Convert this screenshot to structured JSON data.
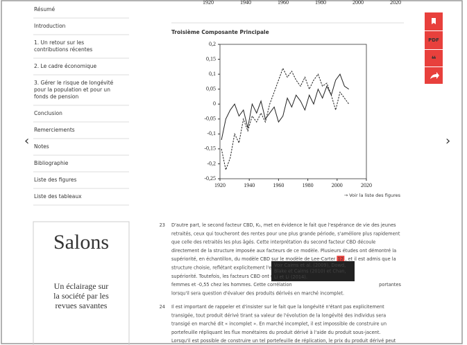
{
  "previous_figure": {
    "xticks": [
      1920,
      1940,
      1960,
      1980,
      2000,
      2020
    ]
  },
  "sidebar": {
    "items": [
      "Résumé",
      "Introduction",
      "1. Un retour sur les contributions récentes",
      "2. Le cadre économique",
      "3. Gérer le risque de longévité pour la population et pour un fonds de pension",
      "Conclusion",
      "Remerciements",
      "Notes",
      "Bibliographie",
      "Liste des figures",
      "Liste des tableaux"
    ]
  },
  "chart_data": {
    "type": "line",
    "title": "Troisième Composante Principale",
    "x": [
      1921,
      1924,
      1927,
      1930,
      1933,
      1936,
      1939,
      1942,
      1945,
      1948,
      1951,
      1954,
      1957,
      1960,
      1963,
      1966,
      1969,
      1972,
      1975,
      1978,
      1981,
      1984,
      1987,
      1990,
      1993,
      1996,
      1999,
      2002,
      2005,
      2008
    ],
    "series": [
      {
        "color": "#222222",
        "dash": false,
        "values": [
          -0.12,
          -0.05,
          -0.02,
          0.0,
          -0.04,
          -0.02,
          -0.08,
          0.0,
          -0.03,
          0.01,
          -0.05,
          -0.03,
          -0.01,
          -0.06,
          -0.04,
          0.02,
          -0.01,
          0.03,
          0.01,
          -0.02,
          0.03,
          0.0,
          0.05,
          0.02,
          0.06,
          0.03,
          0.08,
          0.1,
          0.06,
          0.05
        ]
      },
      {
        "color": "#222222",
        "dash": true,
        "values": [
          -0.15,
          -0.22,
          -0.18,
          -0.1,
          -0.13,
          -0.05,
          -0.09,
          -0.04,
          -0.06,
          -0.03,
          -0.06,
          0.0,
          0.04,
          0.08,
          0.12,
          0.09,
          0.11,
          0.08,
          0.06,
          0.09,
          0.05,
          0.08,
          0.1,
          0.06,
          0.07,
          0.03,
          -0.02,
          0.04,
          0.02,
          0.0
        ]
      }
    ],
    "xlim": [
      1920,
      2020
    ],
    "xticks": [
      1920,
      1940,
      1960,
      1980,
      2000,
      2020
    ],
    "ylim": [
      -0.25,
      0.2
    ],
    "yticks": [
      {
        "value": 0.2,
        "label": "0,2"
      },
      {
        "value": 0.15,
        "label": "0,15"
      },
      {
        "value": 0.1,
        "label": "0,1"
      },
      {
        "value": 0.05,
        "label": "0,05"
      },
      0,
      {
        "value": -0.05,
        "label": "-0,05"
      },
      {
        "value": -0.1,
        "label": "-0,1"
      },
      {
        "value": -0.15,
        "label": "-0,15"
      },
      {
        "value": -0.2,
        "label": "-0,2"
      },
      {
        "value": -0.25,
        "label": "-0,25"
      }
    ]
  },
  "figure_link": "→ Voir la liste des figures",
  "toolbar": {
    "pdf": "PDF"
  },
  "paragraphs": [
    {
      "number": "23",
      "lines": [
        "D'autre part, le second facteur CBD, K₂, met en évidence le fait que l'espérance de vie des jeunes",
        "retraités, ceux qui toucheront des rentes pour une plus grande période, s'améliore plus rapidement",
        "que celle des retraités les plus âgés. Cette interprétation du second facteur CBD découle",
        "directement de la structure imposée aux facteurs de ce modèle. Plusieurs études ont démontré la",
        "supériorité, en échantillon, du modèle CBD sur le modèle de Lee-Carter",
        "structure choisie, reflétant explicitement l'effet de l'âge sur",
        "supériorité. Toutefois, les facteurs CBD ont une forte corré",
        "femmes et -0,55 chez les hommes. Cette corrélation",
        "lorsqu'il sera question d'évaluer des produits dérivés en marché incomplet."
      ],
      "note": "12",
      "after_note": ", et il est admis que la",
      "line8_end": "portantes"
    },
    {
      "number": "24",
      "lines": [
        "Il est important de rappeler et d'insister sur le fait que la longévité n'étant pas explicitement",
        "transigée, tout produit dérivé tirant sa valeur de l'évolution de la longévité des individus sera",
        "transigé en marché dit « incomplet ». En marché incomplet, il est impossible de construire un",
        "portefeuille répliquant les flux monétaires du produit dérivé à l'aide du produit sous-jacent.",
        "Lorsqu'il est possible de construire un tel portefeuille de réplication, le prix du produit dérivé peut"
      ]
    }
  ],
  "tooltip": {
    "lines": [
      "Voir Cairns et al. (2009), Dowd,",
      "Blake et Cairns (2010) et Chan,",
      "Li et Li (2014)."
    ]
  },
  "salons": {
    "title": "Salons",
    "lines": [
      "Un éclairage sur",
      "la société par les",
      "revues savantes"
    ]
  }
}
